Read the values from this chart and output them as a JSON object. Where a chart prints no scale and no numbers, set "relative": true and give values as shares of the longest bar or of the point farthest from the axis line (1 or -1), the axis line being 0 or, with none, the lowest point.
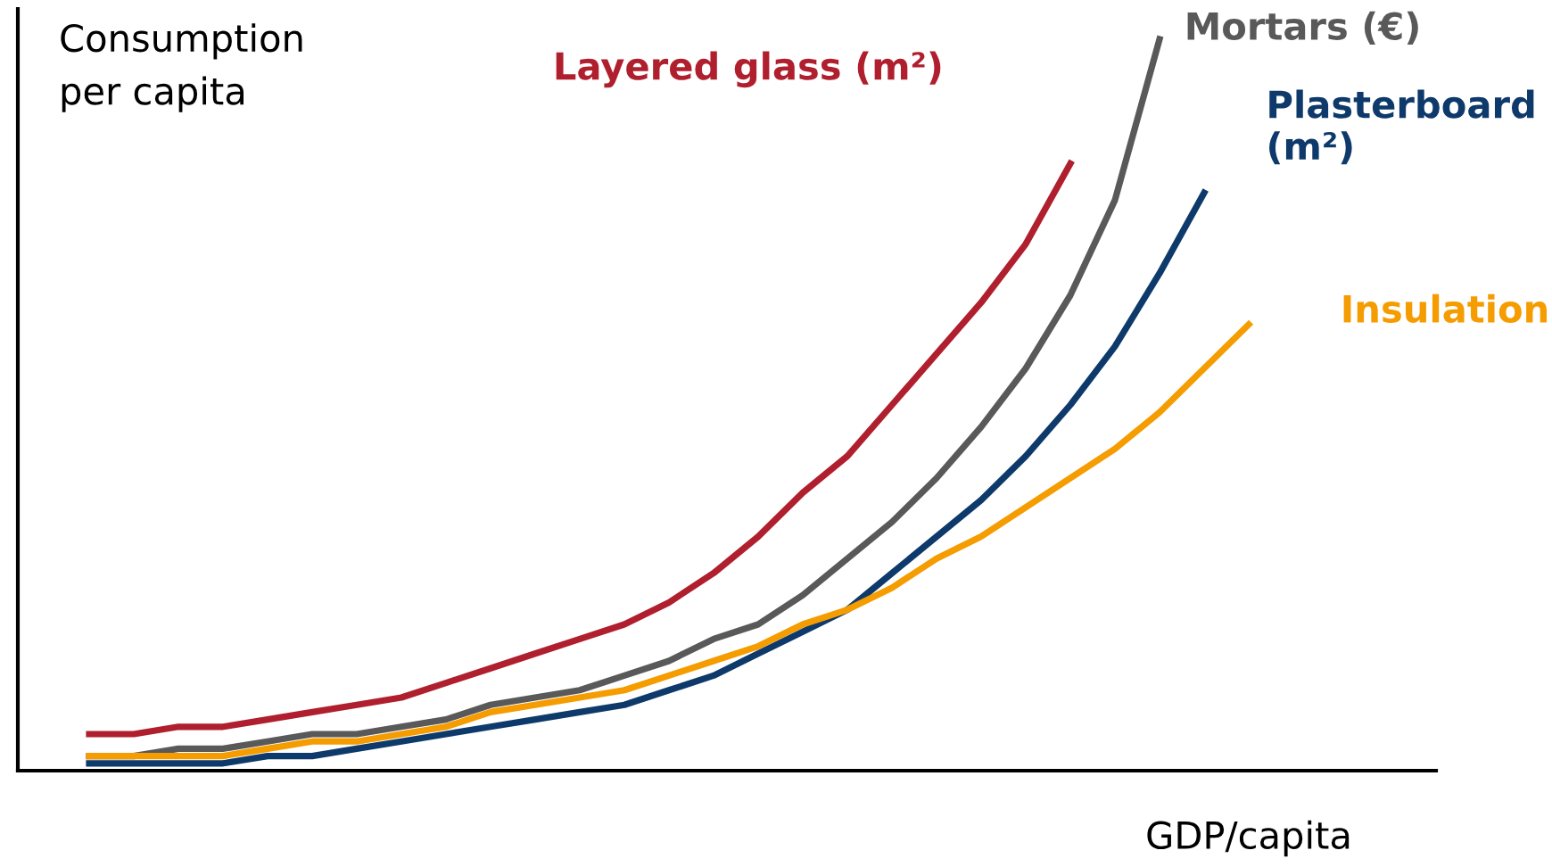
{
  "chart_data": {
    "type": "line",
    "relative": true,
    "ylabel": "Consumption\nper capita",
    "xlabel": "GDP/capita",
    "legend": false,
    "marker": "none",
    "line_style": "solid",
    "categories": [
      null,
      null,
      null,
      null,
      null,
      null,
      null,
      null,
      null,
      null,
      null,
      null,
      null,
      null,
      null,
      null,
      null,
      null,
      null,
      null,
      null,
      null,
      null,
      null,
      null,
      null,
      null
    ],
    "series": [
      {
        "name": "Layered glass (m²)",
        "color": "#b01f2e",
        "values": [
          0.05,
          0.05,
          0.06,
          0.06,
          0.07,
          0.08,
          0.09,
          0.1,
          0.12,
          0.14,
          0.16,
          0.18,
          0.2,
          0.23,
          0.27,
          0.32,
          0.38,
          0.43,
          0.5,
          0.57,
          0.64,
          0.72,
          0.83,
          null,
          null,
          null,
          null
        ]
      },
      {
        "name": "Mortars (€)",
        "color": "#595959",
        "values": [
          0.02,
          0.02,
          0.03,
          0.03,
          0.04,
          0.05,
          0.05,
          0.06,
          0.07,
          0.09,
          0.1,
          0.11,
          0.13,
          0.15,
          0.18,
          0.2,
          0.24,
          0.29,
          0.34,
          0.4,
          0.47,
          0.55,
          0.65,
          0.78,
          1.0,
          null,
          null
        ]
      },
      {
        "name": "Plasterboard\n(m²)",
        "color": "#0e3a6b",
        "values": [
          0.01,
          0.01,
          0.01,
          0.01,
          0.02,
          0.02,
          0.03,
          0.04,
          0.05,
          0.06,
          0.07,
          0.08,
          0.09,
          0.11,
          0.13,
          0.16,
          0.19,
          0.22,
          0.27,
          0.32,
          0.37,
          0.43,
          0.5,
          0.58,
          0.68,
          0.79,
          null
        ]
      },
      {
        "name": "Insulation",
        "color": "#f59c00",
        "values": [
          0.02,
          0.02,
          0.02,
          0.02,
          0.03,
          0.04,
          0.04,
          0.05,
          0.06,
          0.08,
          0.09,
          0.1,
          0.11,
          0.13,
          0.15,
          0.17,
          0.2,
          0.22,
          0.25,
          0.29,
          0.32,
          0.36,
          0.4,
          0.44,
          0.49,
          0.55,
          0.61
        ]
      }
    ]
  }
}
